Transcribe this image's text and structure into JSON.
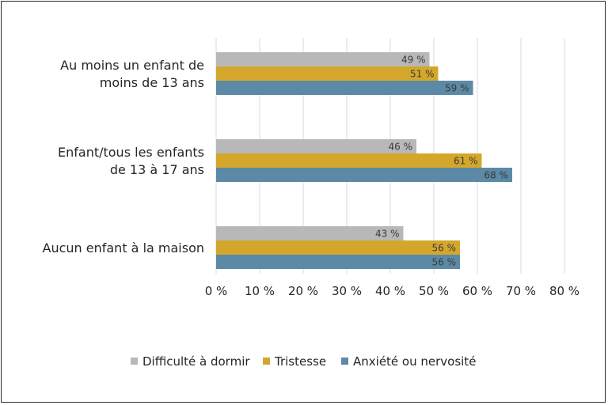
{
  "chart_data": {
    "type": "bar",
    "orientation": "horizontal",
    "categories": [
      [
        "Au moins un enfant de",
        "moins de 13 ans"
      ],
      [
        "Enfant/tous les enfants",
        "de 13 à 17 ans"
      ],
      [
        "Aucun enfant à la maison"
      ]
    ],
    "series": [
      {
        "name": "Difficulté à dormir",
        "color": "#b8b8b8",
        "values": [
          49,
          46,
          43
        ],
        "labels": [
          "49 %",
          "46 %",
          "43 %"
        ]
      },
      {
        "name": "Tristesse",
        "color": "#d4a72c",
        "values": [
          51,
          61,
          56
        ],
        "labels": [
          "51 %",
          "61 %",
          "56 %"
        ]
      },
      {
        "name": "Anxiété ou nervosité",
        "color": "#5b89a6",
        "values": [
          59,
          68,
          56
        ],
        "labels": [
          "59 %",
          "68 %",
          "56 %"
        ]
      }
    ],
    "xlim": [
      0,
      80
    ],
    "xticks": [
      0,
      10,
      20,
      30,
      40,
      50,
      60,
      70,
      80
    ],
    "xtick_labels": [
      "0 %",
      "10 %",
      "20 %",
      "30 %",
      "40 %",
      "50 %",
      "60 %",
      "70 %",
      "80 %"
    ],
    "grid": true,
    "legend_position": "bottom",
    "title": "",
    "xlabel": "",
    "ylabel": ""
  }
}
